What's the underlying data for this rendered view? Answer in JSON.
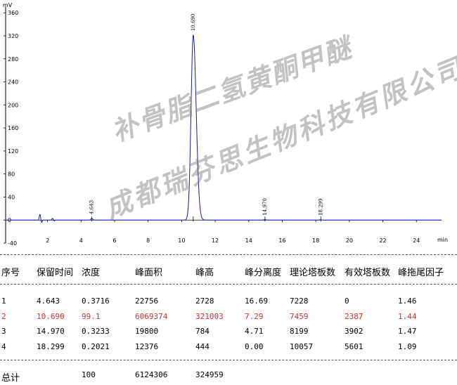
{
  "chart_data": {
    "type": "line",
    "ylabel": "mV",
    "xlabel": "min",
    "xlim": [
      -0.5,
      25.5
    ],
    "ylim": [
      -40,
      370
    ],
    "x_ticks": [
      2,
      4,
      6,
      8,
      10,
      12,
      14,
      16,
      18,
      20,
      22,
      24
    ],
    "x_tick_labels": [
      "2",
      "4",
      "6",
      "8",
      "10",
      "12",
      "14",
      "16",
      "18",
      "20",
      "22",
      "24"
    ],
    "y_ticks": [
      -40,
      0,
      40,
      80,
      120,
      160,
      200,
      240,
      280,
      320,
      360
    ],
    "y_tick_labels": [
      "-40",
      "0",
      "40",
      "80",
      "120",
      "160",
      "200",
      "240",
      "280",
      "320",
      "360"
    ],
    "peaks": [
      {
        "rt": 4.643,
        "label": "4.643",
        "height": 2.7
      },
      {
        "rt": 10.69,
        "label": "10.690",
        "height": 321.0
      },
      {
        "rt": 14.97,
        "label": "14.970",
        "height": 0.8
      },
      {
        "rt": 18.299,
        "label": "18.299",
        "height": 0.4
      }
    ],
    "artifacts": [
      {
        "rt": 1.55,
        "height": 10
      },
      {
        "rt": 2.3,
        "height": 3
      }
    ],
    "grid": false,
    "series_color": "#1a1aa8"
  },
  "table": {
    "headers": [
      "序号",
      "保留时间",
      "浓度",
      "峰面积",
      "峰高",
      "峰分离度",
      "理论塔板数",
      "有效塔板数",
      "峰拖尾因子"
    ],
    "rows": [
      [
        "1",
        "4.643",
        "0.3716",
        "22756",
        "2728",
        "16.69",
        "7228",
        "0",
        "1.46"
      ],
      [
        "2",
        "10.690",
        "99.1",
        "6069374",
        "321003",
        "7.29",
        "7459",
        "2387",
        "1.44"
      ],
      [
        "3",
        "14.970",
        "0.3233",
        "19800",
        "784",
        "4.71",
        "8199",
        "3902",
        "1.47"
      ],
      [
        "4",
        "18.299",
        "0.2021",
        "12376",
        "444",
        "0.00",
        "10057",
        "5601",
        "1.09"
      ]
    ],
    "highlight_row": 1,
    "highlight_color": "#d03030",
    "total": [
      "总计",
      "",
      "100",
      "6124306",
      "324959",
      "",
      "",
      "",
      ""
    ]
  },
  "watermark": {
    "line1": "补骨脂二氢黄酮甲醚",
    "line2": "成都瑞芬思生物科技有限公司"
  }
}
